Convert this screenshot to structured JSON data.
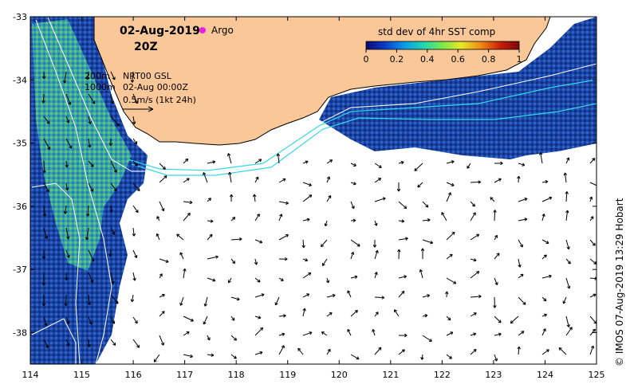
{
  "map": {
    "date_title": "02-Aug-2019",
    "time_title": "20Z",
    "legend_argo": "Argo",
    "argo_marker_color": "#e81fe8",
    "colorbar": {
      "title": "std dev of 4hr SST comp",
      "ticks": [
        "0",
        "0.2",
        "0.4",
        "0.6",
        "0.8",
        "1"
      ],
      "colors": [
        "#0a0a70",
        "#0c3ac8",
        "#0a9ae8",
        "#22d8b0",
        "#7be94a",
        "#e8e82a",
        "#f08a12",
        "#c81a0a",
        "#7a0808"
      ]
    },
    "info": {
      "contour_200": "200m",
      "contour_1000": "1000m",
      "product": "NRT00 GSL",
      "product_time": "02-Aug 00:00Z",
      "vector_scale": "0.5m/s (1kt 24h)"
    },
    "x_ticks": [
      "114",
      "115",
      "116",
      "117",
      "118",
      "119",
      "120",
      "121",
      "122",
      "123",
      "124",
      "125"
    ],
    "y_ticks": [
      "-33",
      "-34",
      "-35",
      "-36",
      "-37",
      "-38"
    ],
    "credit": "© IMOS 07-Aug-2019 13:29 Hobart",
    "colors": {
      "land": "#fac898",
      "ocean_sst": "#1a3fa0",
      "coast_ink": "#000000",
      "bathymetry": "#ffffff",
      "altimetry_track": "#35d8e8"
    }
  }
}
